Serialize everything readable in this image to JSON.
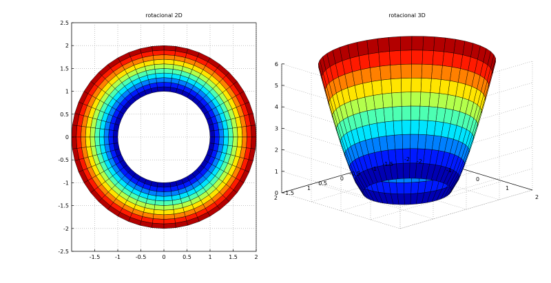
{
  "chart_data": [
    {
      "type": "surface-2d",
      "title": "rotacional 2D",
      "shape": "annulus",
      "inner_radius": 1,
      "outer_radius": 2,
      "radial_bands": 10,
      "angular_segments": 48,
      "colormap": "jet",
      "xlim": [
        -2,
        2
      ],
      "ylim": [
        -2.5,
        2.5
      ],
      "xticks": [
        "-1.5",
        "-1",
        "-0.5",
        "0",
        "0.5",
        "1",
        "1.5",
        "2"
      ],
      "yticks": [
        "2.5",
        "2",
        "1.5",
        "1",
        "0.5",
        "0",
        "-0.5",
        "-1",
        "-1.5",
        "-2",
        "-2.5"
      ],
      "grid": true
    },
    {
      "type": "surface-3d",
      "title": "rotacional 3D",
      "shape": "surface of revolution",
      "inner_radius": 1,
      "outer_radius": 2,
      "zlim": [
        0,
        6
      ],
      "bands": 10,
      "angular_segments": 48,
      "colormap": "jet",
      "zticks": [
        "6",
        "5",
        "4",
        "3",
        "2",
        "1",
        "0"
      ],
      "x_axis_ticks": [
        "2",
        "1",
        "0",
        "-1",
        "-2"
      ],
      "y_axis_ticks": [
        "2",
        "1.5",
        "1",
        "0.5",
        "0",
        "-0.5",
        "-1",
        "-1.5",
        "-2"
      ],
      "grid": true
    }
  ]
}
